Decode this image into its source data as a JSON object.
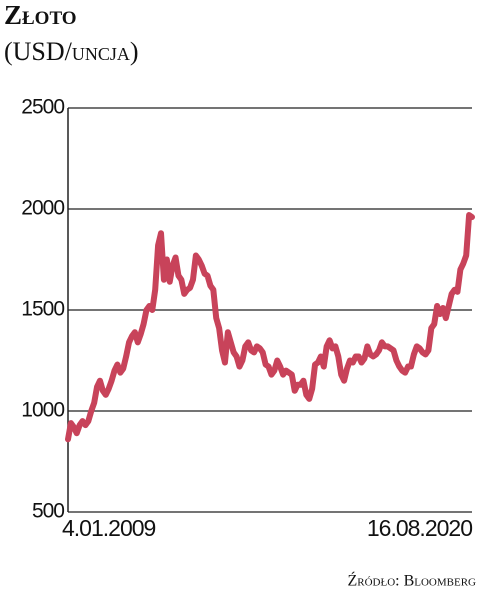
{
  "chart_data": {
    "type": "line",
    "title": "Złoto",
    "subtitle": "(USD/uncja)",
    "source": "Źródło: Bloomberg",
    "categories": [
      "4.01.2009",
      null,
      null,
      null,
      null,
      null,
      null,
      null,
      null,
      null,
      null,
      null,
      null,
      null,
      null,
      null,
      null,
      null,
      null,
      null,
      null,
      null,
      null,
      null,
      null,
      null,
      null,
      null,
      null,
      null,
      null,
      null,
      null,
      null,
      null,
      null,
      null,
      null,
      null,
      null,
      null,
      null,
      null,
      null,
      null,
      null,
      null,
      null,
      null,
      null,
      null,
      null,
      null,
      null,
      null,
      null,
      null,
      null,
      null,
      null,
      null,
      null,
      null,
      null,
      null,
      null,
      null,
      null,
      null,
      null,
      null,
      null,
      null,
      null,
      null,
      null,
      null,
      null,
      null,
      null,
      null,
      null,
      null,
      null,
      null,
      null,
      null,
      null,
      null,
      null,
      null,
      null,
      null,
      null,
      null,
      null,
      null,
      null,
      null,
      null,
      null,
      null,
      null,
      null,
      null,
      null,
      null,
      null,
      null,
      null,
      null,
      null,
      null,
      null,
      null,
      null,
      null,
      null,
      null,
      null,
      null,
      null,
      null,
      null,
      null,
      null,
      null,
      null,
      null,
      null,
      null,
      null,
      null,
      null,
      null,
      null,
      null,
      null,
      null,
      "16.08.2020"
    ],
    "values": [
      860,
      940,
      920,
      890,
      930,
      950,
      930,
      950,
      1000,
      1040,
      1120,
      1150,
      1100,
      1080,
      1110,
      1150,
      1200,
      1230,
      1190,
      1210,
      1270,
      1340,
      1370,
      1390,
      1340,
      1380,
      1430,
      1500,
      1520,
      1500,
      1600,
      1820,
      1880,
      1650,
      1750,
      1640,
      1720,
      1760,
      1670,
      1650,
      1580,
      1600,
      1610,
      1650,
      1770,
      1750,
      1720,
      1680,
      1670,
      1620,
      1600,
      1460,
      1410,
      1300,
      1240,
      1390,
      1340,
      1290,
      1270,
      1220,
      1250,
      1320,
      1340,
      1300,
      1290,
      1320,
      1310,
      1290,
      1230,
      1220,
      1180,
      1200,
      1250,
      1220,
      1180,
      1200,
      1190,
      1180,
      1100,
      1130,
      1130,
      1150,
      1080,
      1060,
      1110,
      1230,
      1240,
      1270,
      1220,
      1320,
      1350,
      1310,
      1320,
      1270,
      1180,
      1150,
      1210,
      1250,
      1240,
      1270,
      1270,
      1240,
      1260,
      1320,
      1280,
      1270,
      1280,
      1300,
      1340,
      1320,
      1320,
      1310,
      1300,
      1250,
      1220,
      1200,
      1190,
      1220,
      1220,
      1280,
      1320,
      1310,
      1290,
      1280,
      1300,
      1410,
      1430,
      1520,
      1480,
      1510,
      1460,
      1520,
      1580,
      1600,
      1590,
      1700,
      1730,
      1770,
      1970,
      1960
    ],
    "color": "#c8435a",
    "ylim": [
      500,
      2500
    ],
    "yticks": [
      500,
      1000,
      1500,
      2000,
      2500
    ],
    "grid": true
  }
}
